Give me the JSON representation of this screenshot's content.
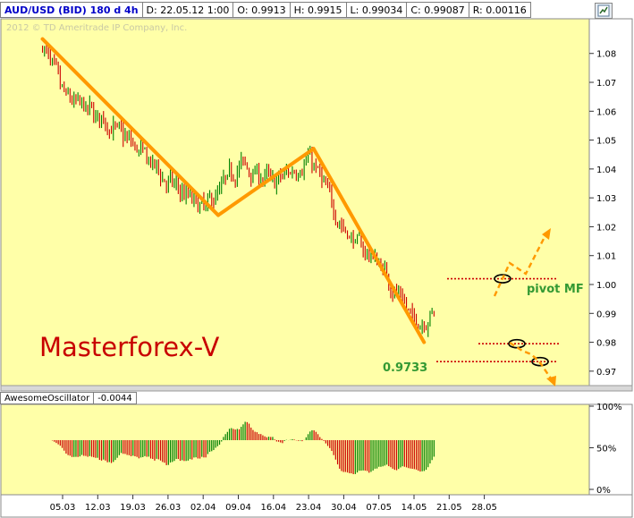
{
  "header": {
    "symbol": "AUD/USD (BID) 180 d 4h",
    "date": "D: 22.05.12 1:00",
    "open": "O: 0.9913",
    "high": "H: 0.9915",
    "low": "L: 0.99034",
    "close": "C: 0.99087",
    "range": "R: 0.00116",
    "icon": "chart-settings-icon"
  },
  "copyright": "2012 © TD Ameritrade IP Company, Inc.",
  "annotations": {
    "brand": "Masterforex-V",
    "pivot": "pivot MF",
    "level": "0.9733"
  },
  "indicator": {
    "name": "AwesomeOscillator",
    "value": "-0.0044"
  },
  "colors": {
    "plot_bg": "#ffffa8",
    "candle_up": "#008000",
    "candle_down": "#cc0000",
    "trend_line": "#ff9900",
    "level_line": "#cc0000",
    "brand_text": "#c80000",
    "label_green": "#339933"
  },
  "chart_data": [
    {
      "type": "candlestick",
      "symbol": "AUD/USD",
      "y_ticks": [
        1.08,
        1.07,
        1.06,
        1.05,
        1.04,
        1.03,
        1.02,
        1.01,
        1,
        0.99,
        0.98,
        0.97
      ],
      "ylim": [
        0.965,
        1.092
      ],
      "x_ticks": [
        "05.03",
        "12.03",
        "19.03",
        "26.03",
        "02.04",
        "09.04",
        "16.04",
        "23.04",
        "30.04",
        "07.05",
        "14.05",
        "21.05",
        "28.05"
      ],
      "approx_close_path": [
        {
          "x": "01.03",
          "y": 1.082
        },
        {
          "x": "05.03",
          "y": 1.065
        },
        {
          "x": "12.03",
          "y": 1.058
        },
        {
          "x": "19.03",
          "y": 1.048
        },
        {
          "x": "26.03",
          "y": 1.035
        },
        {
          "x": "02.04",
          "y": 1.026
        },
        {
          "x": "09.04",
          "y": 1.042
        },
        {
          "x": "16.04",
          "y": 1.035
        },
        {
          "x": "23.04",
          "y": 1.044
        },
        {
          "x": "30.04",
          "y": 1.018
        },
        {
          "x": "07.05",
          "y": 1.007
        },
        {
          "x": "14.05",
          "y": 0.986
        },
        {
          "x": "18.05",
          "y": 0.991
        }
      ],
      "trend_lines": [
        {
          "from": {
            "x": "01.03",
            "y": 1.085
          },
          "to": {
            "x": "05.04",
            "y": 1.024
          }
        },
        {
          "from": {
            "x": "05.04",
            "y": 1.024
          },
          "to": {
            "x": "24.04",
            "y": 1.047
          }
        },
        {
          "from": {
            "x": "24.04",
            "y": 1.047
          },
          "to": {
            "x": "16.05",
            "y": 0.98
          }
        }
      ],
      "levels": [
        1.002,
        0.9795,
        0.9733
      ]
    },
    {
      "type": "histogram",
      "name": "AwesomeOscillator",
      "y_ticks": [
        "100%",
        "50%",
        "0%"
      ],
      "ylim": [
        0,
        100
      ]
    }
  ]
}
